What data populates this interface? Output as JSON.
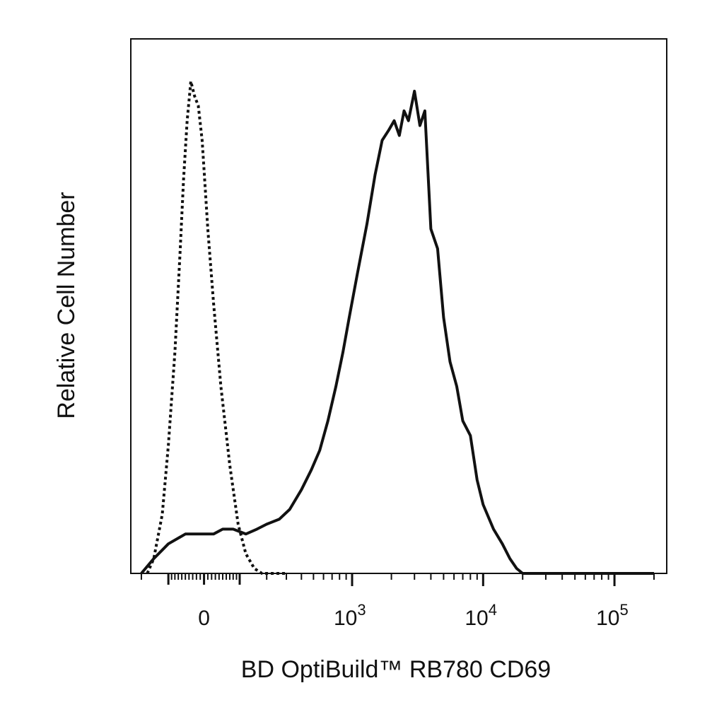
{
  "chart_data": {
    "type": "line",
    "xlabel": "BD OptiBuild™ RB780 CD69",
    "ylabel": "Relative Cell Number",
    "x_scale": "biexponential",
    "xlim": [
      -250,
      250000
    ],
    "ylim": [
      0,
      100
    ],
    "grid": false,
    "x_tick_labels": [
      {
        "value": 0,
        "base": "0",
        "exp": ""
      },
      {
        "value": 1000,
        "base": "10",
        "exp": "3"
      },
      {
        "value": 10000,
        "base": "10",
        "exp": "4"
      },
      {
        "value": 100000,
        "base": "10",
        "exp": "5"
      }
    ],
    "series": [
      {
        "style": "dotted",
        "x": [
          -175,
          -150,
          -120,
          -100,
          -80,
          -65,
          -55,
          -45,
          -35,
          -25,
          -15,
          -5,
          0,
          10,
          25,
          45,
          70,
          95,
          120,
          150,
          180,
          220,
          260,
          300
        ],
        "y": [
          0,
          3,
          12,
          26,
          45,
          65,
          80,
          92,
          100,
          97,
          95,
          88,
          82,
          70,
          55,
          38,
          22,
          10,
          4,
          1,
          0,
          0,
          0,
          0
        ]
      },
      {
        "style": "solid",
        "x": [
          -200,
          -150,
          -100,
          -50,
          0,
          25,
          50,
          80,
          120,
          160,
          200,
          260,
          320,
          400,
          480,
          560,
          650,
          750,
          850,
          950,
          1100,
          1300,
          1500,
          1700,
          1900,
          2100,
          2300,
          2500,
          2700,
          3000,
          3300,
          3600,
          4000,
          4500,
          5000,
          5600,
          6300,
          7000,
          8000,
          9000,
          10000,
          12000,
          14000,
          16000,
          18000,
          20000,
          25000,
          30000,
          40000,
          50000,
          60000,
          80000,
          120000,
          200000
        ],
        "y": [
          0,
          3,
          6,
          8,
          8,
          8,
          9,
          9,
          8,
          9,
          10,
          11,
          13,
          17,
          21,
          25,
          31,
          38,
          45,
          52,
          61,
          71,
          81,
          88,
          90,
          92,
          89,
          94,
          92,
          98,
          91,
          94,
          70,
          66,
          52,
          43,
          38,
          31,
          28,
          19,
          14,
          9,
          6,
          3,
          1,
          0,
          0,
          0,
          0,
          0,
          0,
          0,
          0,
          0
        ]
      }
    ]
  }
}
